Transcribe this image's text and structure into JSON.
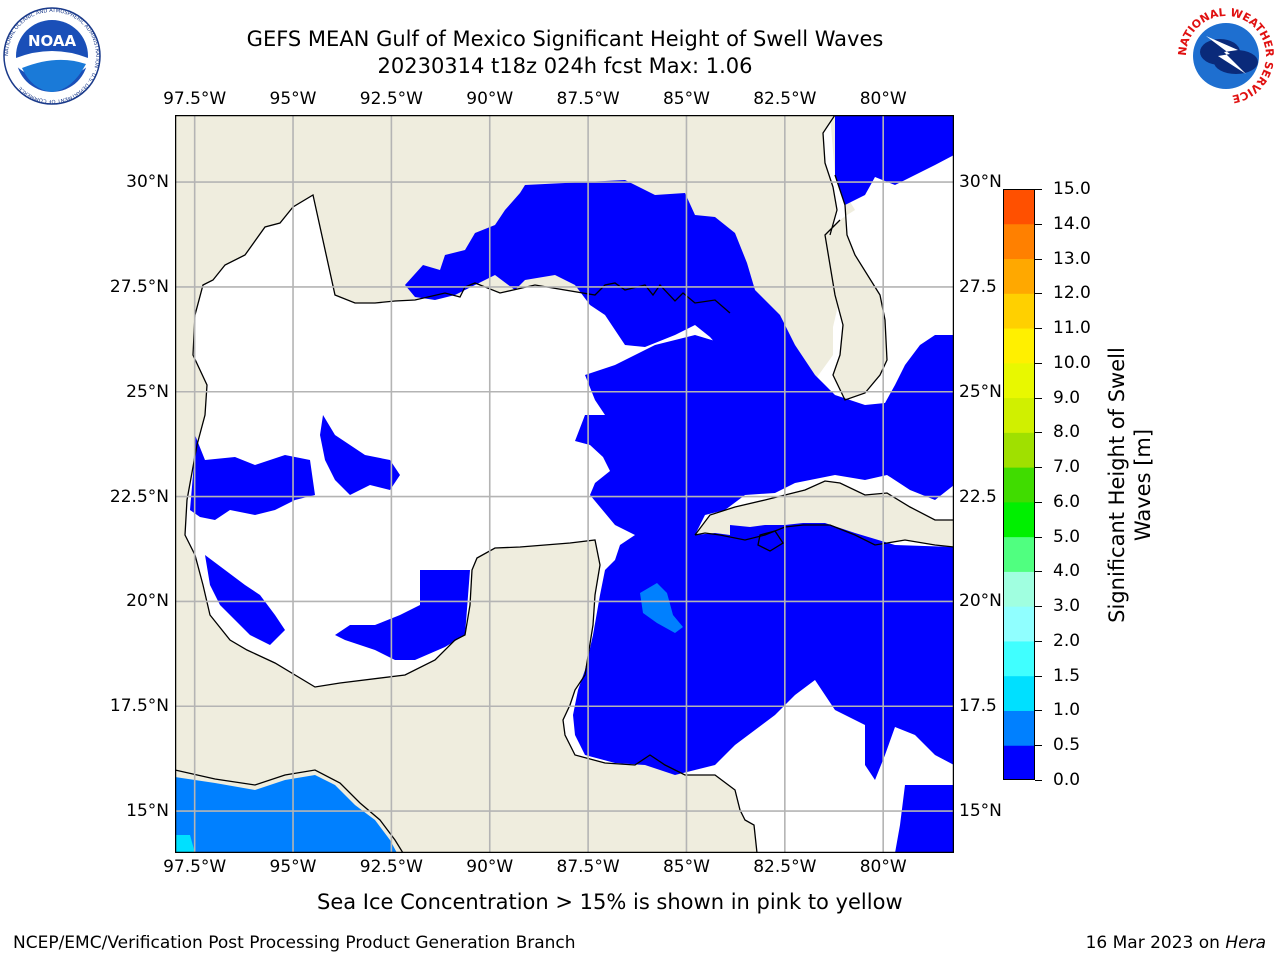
{
  "title": {
    "line1": "GEFS MEAN Gulf of Mexico Significant Height of Swell Waves",
    "line2": "20230314 t18z 024h fcst   Max: 1.06"
  },
  "map": {
    "lon_labels": [
      "97.5°W",
      "95°W",
      "92.5°W",
      "90°W",
      "87.5°W",
      "85°W",
      "82.5°W",
      "80°W"
    ],
    "lon_values": [
      -97.5,
      -95,
      -92.5,
      -90,
      -87.5,
      -85,
      -82.5,
      -80
    ],
    "lat_labels_left": [
      "30°N",
      "27.5°N",
      "25°N",
      "22.5°N",
      "20°N",
      "17.5°N",
      "15°N"
    ],
    "lat_labels_right": [
      "30°N",
      "27.5",
      "25°N",
      "22.5",
      "20°N",
      "17.5",
      "15°N"
    ],
    "lat_values": [
      30,
      27.5,
      25,
      22.5,
      20,
      17.5,
      15
    ],
    "extent": {
      "lon_min": -98,
      "lon_max": -78.2,
      "lat_min": 14,
      "lat_max": 31.6
    },
    "land_color": "#efedde",
    "ocean_color": "#ffffff",
    "grid_color": "#b4b4b4"
  },
  "colorbar": {
    "title": "Significant Height of Swell Waves [m]",
    "ticks": [
      "0.0",
      "0.5",
      "1.0",
      "1.5",
      "2.0",
      "3.0",
      "4.0",
      "5.0",
      "6.0",
      "7.0",
      "8.0",
      "9.0",
      "10.0",
      "11.0",
      "12.0",
      "13.0",
      "14.0",
      "15.0"
    ],
    "colors": [
      "#0000ff",
      "#0080ff",
      "#00e0ff",
      "#40ffff",
      "#90ffff",
      "#a0ffe0",
      "#50ff80",
      "#00f000",
      "#40dc00",
      "#a0e000",
      "#d0f000",
      "#e8f800",
      "#fff000",
      "#ffd000",
      "#ffa800",
      "#ff8000",
      "#ff5000",
      "#ff2000",
      "#ff0000"
    ]
  },
  "logos": {
    "noaa": {
      "name": "NOAA",
      "ring_text": "NATIONAL OCEANIC AND ATMOSPHERIC ADMINISTRATION · U.S. DEPARTMENT OF COMMERCE"
    },
    "nws": {
      "ring_text": "NATIONAL WEATHER SERVICE"
    }
  },
  "footer": {
    "note": "Sea Ice Concentration > 15% is shown in pink to yellow",
    "credit": "NCEP/EMC/Verification Post Processing Product Generation Branch",
    "date_prefix": "16 Mar 2023 on ",
    "date_host": "Hera"
  }
}
